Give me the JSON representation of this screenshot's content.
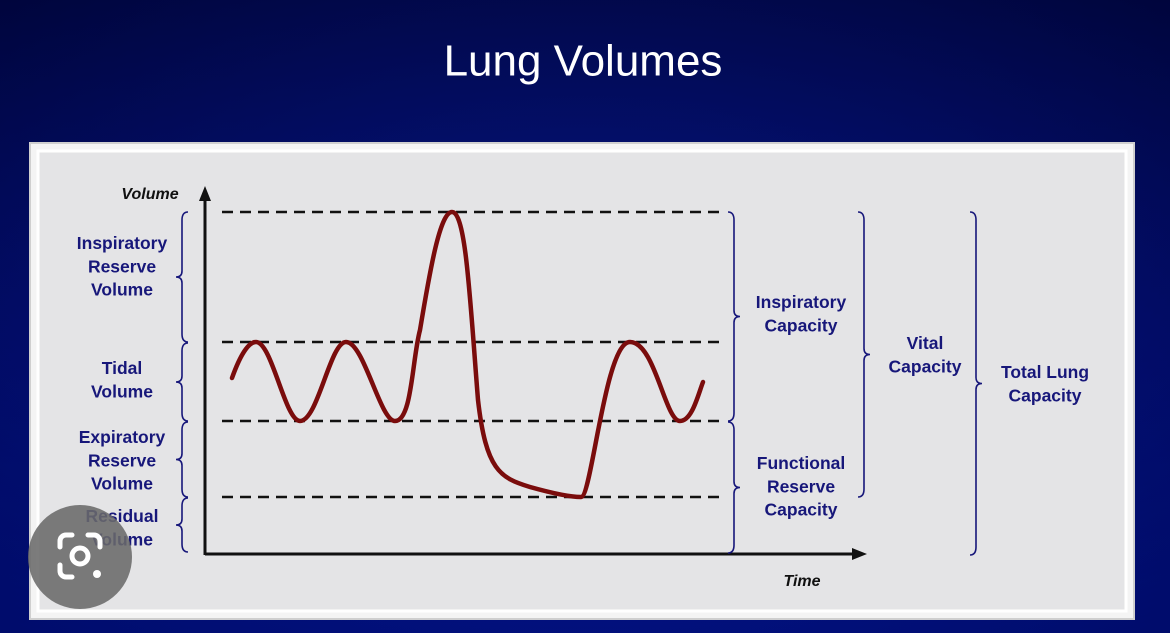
{
  "title": "Lung Volumes",
  "axes": {
    "y_label": "Volume",
    "x_label": "Time"
  },
  "left_labels": [
    [
      "Inspiratory",
      "Reserve",
      "Volume"
    ],
    [
      "Tidal",
      "Volume"
    ],
    [
      "Expiratory",
      "Reserve",
      "Volume"
    ],
    [
      "Residual",
      "Volume"
    ]
  ],
  "capacities": [
    [
      "Inspiratory",
      "Capacity"
    ],
    [
      "Functional",
      "Reserve",
      "Capacity"
    ],
    [
      "Vital",
      "Capacity"
    ],
    [
      "Total Lung",
      "Capacity"
    ]
  ]
}
